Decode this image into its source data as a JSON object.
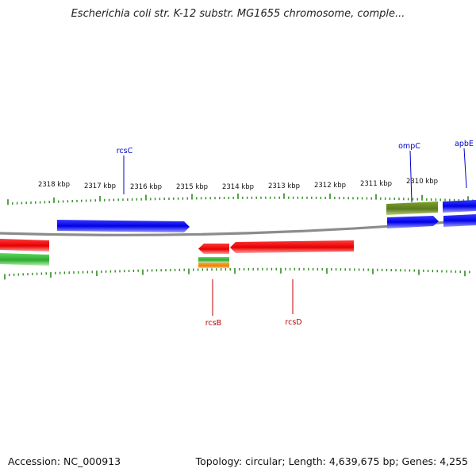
{
  "title": "Escherichia coli str. K-12 substr. MG1655 chromosome, comple...",
  "footer": {
    "accession": "Accession: NC_000913",
    "summary": "Topology: circular; Length: 4,639,675 bp; Genes: 4,255"
  },
  "ruler": {
    "labels": [
      "2318 kbp",
      "2317 kbp",
      "2316 kbp",
      "2315 kbp",
      "2314 kbp",
      "2313 kbp",
      "2312 kbp",
      "2311 kbp",
      "2310 kbp"
    ]
  },
  "gene_labels": {
    "rcsC": "rcsC",
    "ompC": "ompC",
    "apbE": "apbE",
    "rcsB": "rcsB",
    "rcsD": "rcsD"
  },
  "colors": {
    "backbone": "#8c8c8c",
    "tick": "#2e8b1e",
    "forward_gene": "#0000ee",
    "reverse_gene": "#ee0000",
    "rna_feature": "#3cb83c",
    "olive_feature": "#6b8e23",
    "orange_feature": "#ff8c00",
    "forward_label": "#0000cc",
    "reverse_label": "#bb0000"
  }
}
